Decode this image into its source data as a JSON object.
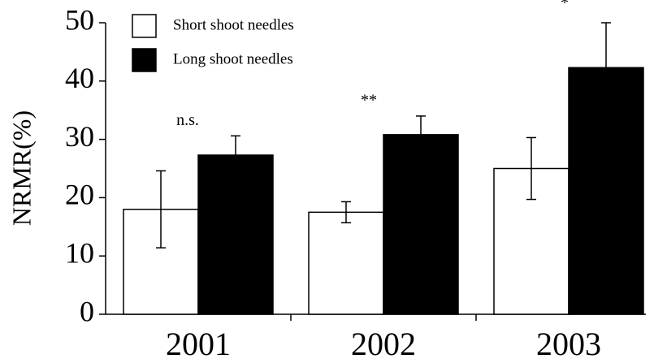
{
  "chart_data": {
    "type": "bar",
    "ylabel": "NRMR(%)",
    "categories": [
      "2001",
      "2002",
      "2003"
    ],
    "series": [
      {
        "name": "Short shoot needles",
        "color": "#ffffff",
        "values": [
          18,
          17.5,
          25
        ],
        "errors": [
          6.6,
          1.8,
          5.3
        ]
      },
      {
        "name": "Long shoot needles",
        "color": "#000000",
        "values": [
          27.3,
          30.8,
          42.3
        ],
        "errors": [
          3.3,
          3.2,
          7.7
        ]
      }
    ],
    "annotations": [
      "n.s.",
      "**",
      "*"
    ],
    "ylim": [
      0,
      50
    ],
    "yticks": [
      0,
      10,
      20,
      30,
      40,
      50
    ],
    "grid": false,
    "legend": "upper left"
  }
}
